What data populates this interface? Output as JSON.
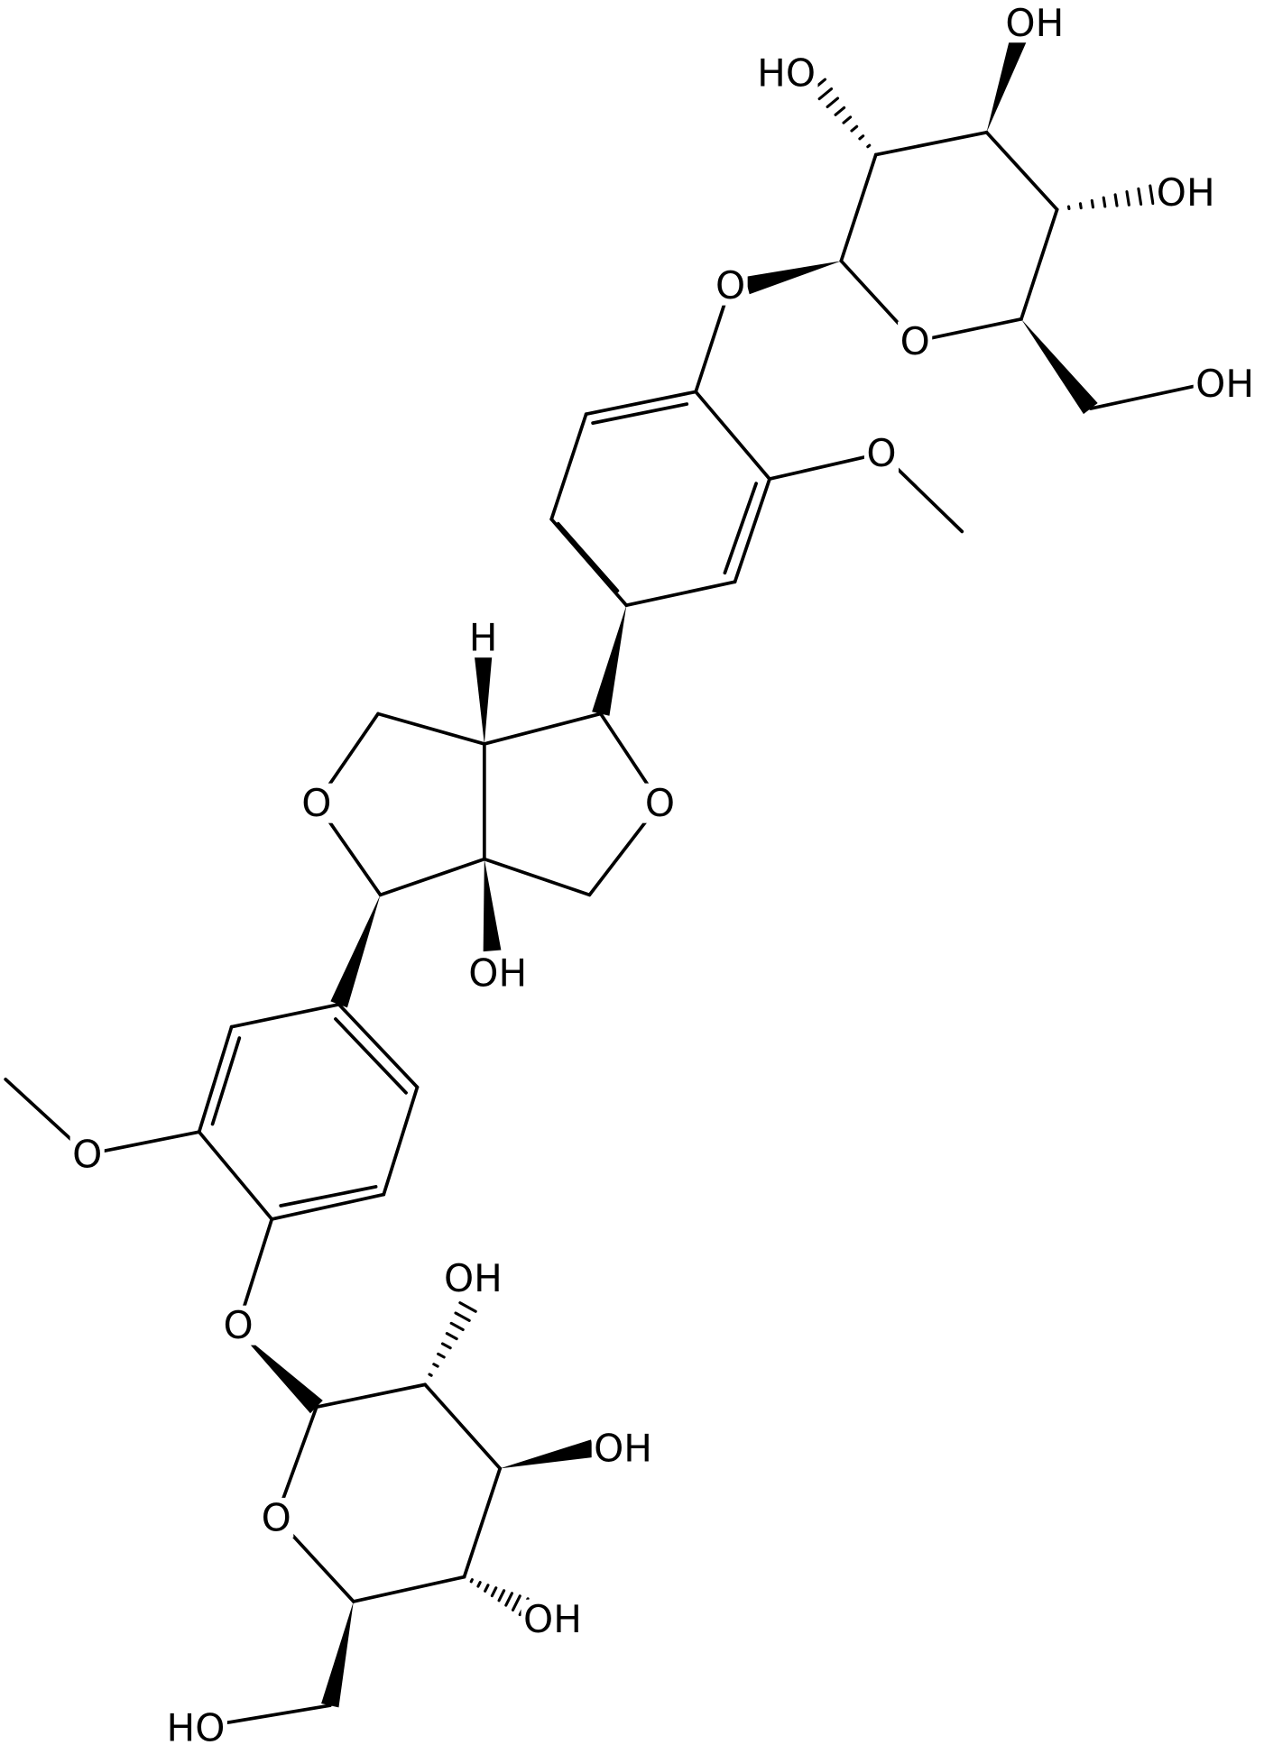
{
  "labels": [
    "HO",
    "OH",
    "OH",
    "O",
    "O",
    "OH",
    "O",
    "H",
    "O",
    "O",
    "OH",
    "O",
    "OH",
    "O",
    "OH",
    "O",
    "OH",
    "HO"
  ]
}
